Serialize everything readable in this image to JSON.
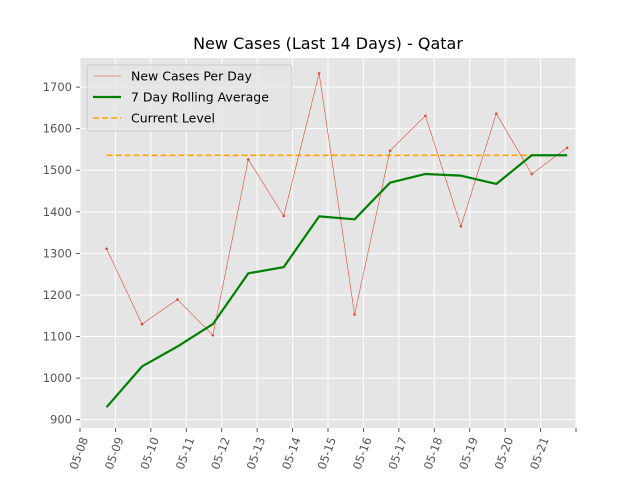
{
  "chart_data": {
    "type": "line",
    "title": "New Cases (Last 14 Days) - Qatar",
    "xlabel": "",
    "ylabel": "",
    "x": [
      "05-08",
      "05-09",
      "05-10",
      "05-11",
      "05-12",
      "05-13",
      "05-14",
      "05-15",
      "05-16",
      "05-17",
      "05-18",
      "05-19",
      "05-20",
      "05-21"
    ],
    "x_tick_labels": [
      "05-08",
      "05-09",
      "05-10",
      "05-11",
      "05-12",
      "05-13",
      "05-14",
      "05-15",
      "05-16",
      "05-17",
      "05-18",
      "05-19",
      "05-20",
      "05-21"
    ],
    "xlim": [
      "05-08",
      "05-22"
    ],
    "ylim": [
      880,
      1770
    ],
    "yticks": [
      900,
      1000,
      1100,
      1200,
      1300,
      1400,
      1500,
      1600,
      1700
    ],
    "grid": true,
    "legend_position": "top-left",
    "series": [
      {
        "name": "New Cases Per Day",
        "color": "#e24a33",
        "style": "thin-line-with-point-markers",
        "points": [
          [
            "05-08 18:00",
            1311
          ],
          [
            "05-09 18:00",
            1130
          ],
          [
            "05-10 18:00",
            1189
          ],
          [
            "05-11 18:00",
            1103
          ],
          [
            "05-12 18:00",
            1526
          ],
          [
            "05-13 18:00",
            1390
          ],
          [
            "05-14 18:00",
            1733
          ],
          [
            "05-15 18:00",
            1153
          ],
          [
            "05-16 18:00",
            1547
          ],
          [
            "05-17 18:00",
            1631
          ],
          [
            "05-18 18:00",
            1365
          ],
          [
            "05-19 18:00",
            1636
          ],
          [
            "05-20 18:00",
            1491
          ],
          [
            "05-21 18:00",
            1554
          ]
        ]
      },
      {
        "name": "7 Day Rolling Average",
        "color": "#008000",
        "style": "thick-line",
        "points": [
          [
            "05-08 18:00",
            930
          ],
          [
            "05-09 18:00",
            1028
          ],
          [
            "05-10 18:00",
            1076
          ],
          [
            "05-11 18:00",
            1130
          ],
          [
            "05-12 18:00",
            1252
          ],
          [
            "05-13 18:00",
            1267
          ],
          [
            "05-14 18:00",
            1389
          ],
          [
            "05-15 18:00",
            1382
          ],
          [
            "05-16 18:00",
            1470
          ],
          [
            "05-17 18:00",
            1491
          ],
          [
            "05-18 18:00",
            1487
          ],
          [
            "05-19 18:00",
            1467
          ],
          [
            "05-20 18:00",
            1536
          ],
          [
            "05-21 18:00",
            1536
          ]
        ]
      },
      {
        "name": "Current Level",
        "color": "#ffa500",
        "style": "dashed-line",
        "points": [
          [
            "05-08 18:00",
            1536
          ],
          [
            "05-21 18:00",
            1536
          ]
        ]
      }
    ]
  }
}
